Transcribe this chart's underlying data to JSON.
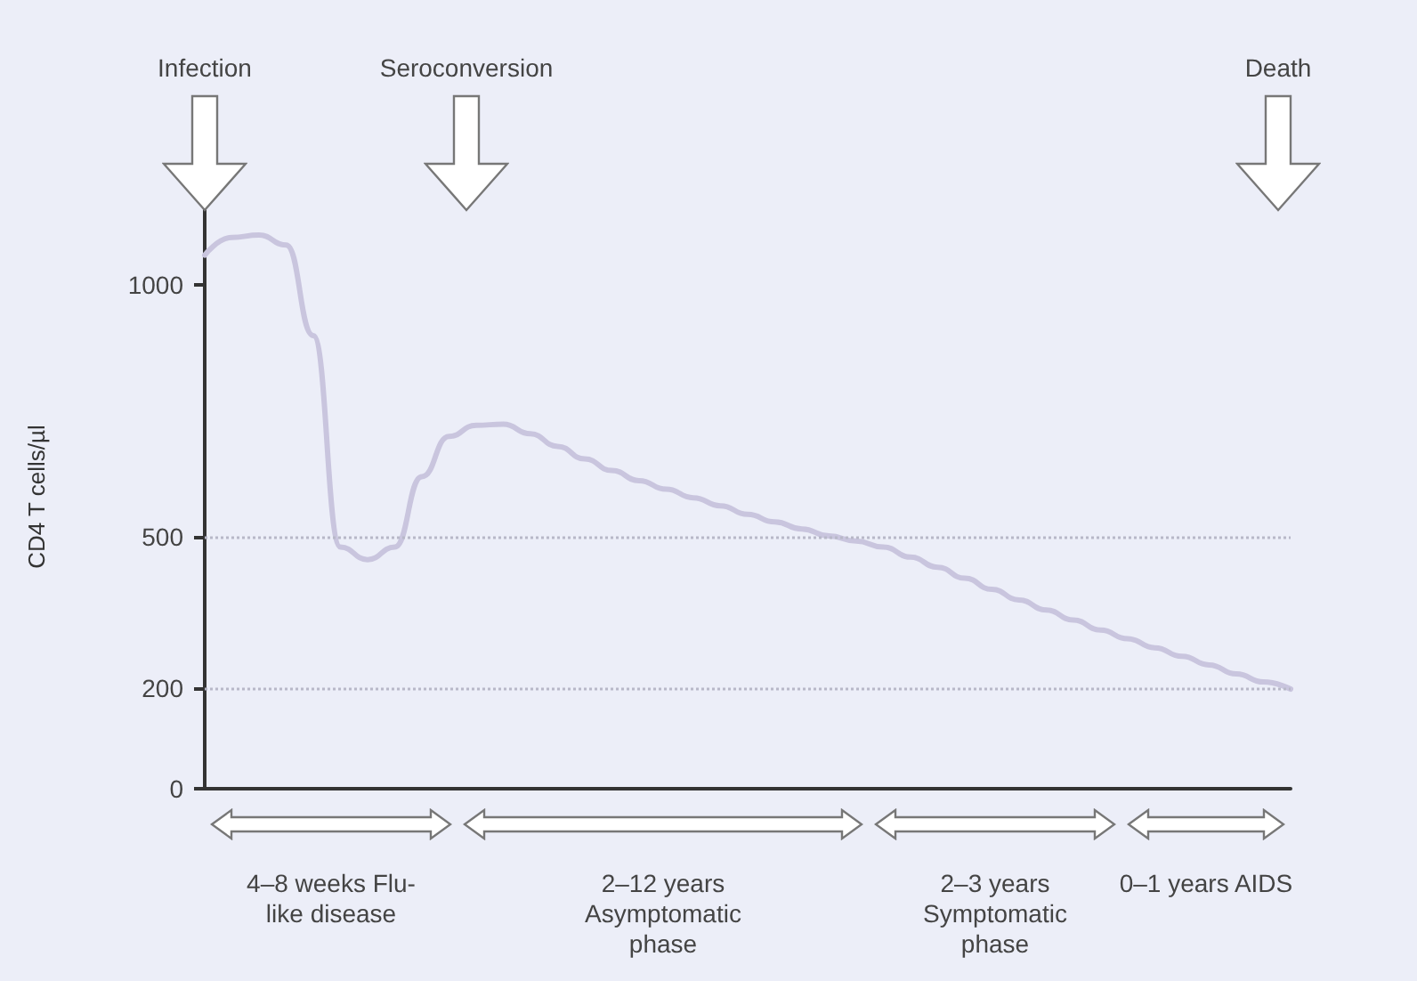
{
  "chart_data": {
    "type": "line",
    "ylabel": "CD4 T cells/µl",
    "categories": [
      null,
      null,
      null,
      null,
      null,
      null,
      null,
      null,
      null,
      null,
      null,
      null,
      null,
      null,
      null,
      null,
      null,
      null,
      null,
      null,
      null,
      null,
      null,
      null,
      null,
      null,
      null,
      null,
      null,
      null,
      null,
      null,
      null,
      null,
      null,
      null,
      null,
      null,
      null,
      null,
      null
    ],
    "series": [
      {
        "color": "#c9c5de",
        "values": [
          1060,
          1095,
          1100,
          1080,
          900,
          480,
          455,
          480,
          620,
          700,
          722,
          724,
          705,
          680,
          655,
          632,
          612,
          595,
          578,
          562,
          545,
          530,
          516,
          502,
          492,
          480,
          460,
          440,
          418,
          396,
          375,
          355,
          335,
          315,
          298,
          280,
          263,
          246,
          228,
          212,
          198
        ]
      }
    ],
    "ylim": [
      0,
      1160
    ],
    "yticks": [
      0,
      200,
      500,
      1000
    ],
    "grid": false,
    "marker": "none",
    "line_style": "solid",
    "ref_lines": [
      {
        "axis": "y",
        "value": 500,
        "line_style": "dotted",
        "color": "#b8b8c8"
      },
      {
        "axis": "y",
        "value": 200,
        "line_style": "dotted",
        "color": "#b8b8c8"
      }
    ],
    "annotations": [
      "Infection",
      "Seroconversion",
      "Death",
      "4–8 weeks Flu-like disease",
      "2–12 years Asymptomatic phase",
      "2–3 years Symptomatic phase",
      "0–1 years AIDS"
    ]
  }
}
